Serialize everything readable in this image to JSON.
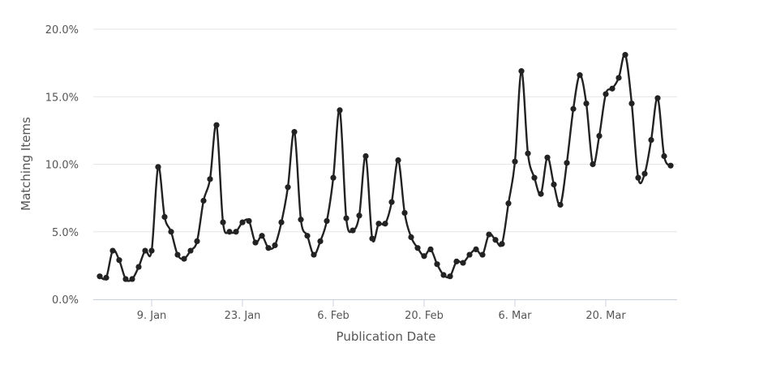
{
  "chart_data": {
    "type": "line",
    "title": "",
    "xlabel": "Publication Date",
    "ylabel": "Matching Items",
    "x_tick_labels": [
      "9. Jan",
      "23. Jan",
      "6. Feb",
      "20. Feb",
      "6. Mar",
      "20. Mar"
    ],
    "x_tick_positions": [
      9,
      23,
      37,
      51,
      65,
      79
    ],
    "y_tick_labels": [
      "0.0%",
      "5.0%",
      "10.0%",
      "15.0%",
      "20.0%"
    ],
    "y_tick_values": [
      0,
      5,
      10,
      15,
      20
    ],
    "xlim": [
      0,
      90
    ],
    "ylim": [
      0,
      20
    ],
    "grid": true,
    "legend": "none",
    "line_color": "#222222",
    "series": [
      {
        "x": [
          1,
          2,
          3,
          4,
          5,
          6,
          7,
          8,
          9,
          10,
          11,
          12,
          13,
          14,
          15,
          16,
          17,
          18,
          19,
          20,
          21,
          22,
          23,
          24,
          25,
          26,
          27,
          28,
          29,
          30,
          31,
          32,
          33,
          34,
          35,
          36,
          37,
          38,
          39,
          40,
          41,
          42,
          43,
          44,
          45,
          46,
          47,
          48,
          49,
          50,
          51,
          52,
          53,
          54,
          55,
          56,
          57,
          58,
          59,
          60,
          61,
          62,
          63,
          64,
          65,
          66,
          67,
          68,
          69,
          70,
          71,
          72,
          73,
          74,
          75,
          76,
          77,
          78,
          79,
          80,
          81,
          82,
          83,
          84,
          85,
          86,
          87,
          88,
          89
        ],
        "values": [
          1.7,
          1.6,
          3.6,
          2.9,
          1.5,
          1.5,
          2.4,
          3.6,
          3.6,
          9.8,
          6.1,
          5.0,
          3.3,
          3.0,
          3.6,
          4.3,
          7.3,
          8.9,
          12.9,
          5.7,
          5.0,
          5.0,
          5.7,
          5.8,
          4.2,
          4.7,
          3.8,
          4.0,
          5.7,
          8.3,
          12.4,
          5.9,
          4.7,
          3.3,
          4.3,
          5.8,
          9.0,
          14.0,
          6.0,
          5.1,
          6.2,
          10.6,
          4.5,
          5.6,
          5.6,
          7.2,
          10.3,
          6.4,
          4.6,
          3.8,
          3.2,
          3.7,
          2.6,
          1.8,
          1.7,
          2.8,
          2.7,
          3.3,
          3.7,
          3.3,
          4.8,
          4.4,
          4.1,
          7.1,
          10.2,
          16.9,
          10.8,
          9.0,
          7.8,
          10.5,
          8.5,
          7.0,
          10.1,
          14.1,
          16.6,
          14.5,
          10.0,
          12.1,
          15.2,
          15.6,
          16.4,
          18.1,
          14.5,
          9.0,
          9.3,
          11.8,
          14.9,
          10.6,
          9.9
        ]
      }
    ]
  }
}
